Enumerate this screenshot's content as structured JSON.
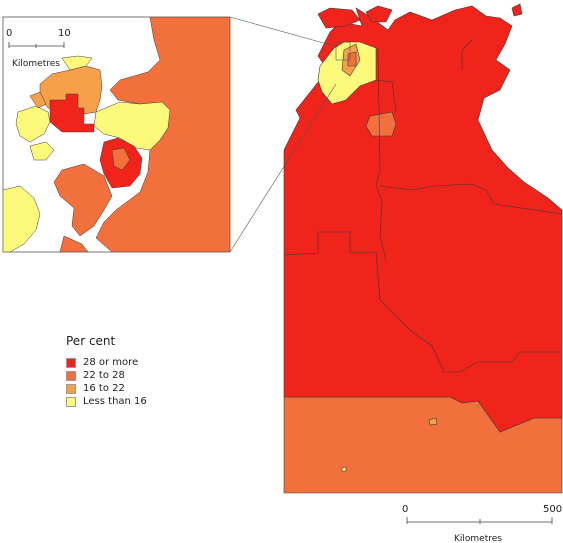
{
  "legend": {
    "title": "Per cent",
    "items": [
      {
        "label": "28 or more",
        "color": "#f0241b"
      },
      {
        "label": "22 to 28",
        "color": "#f2703c"
      },
      {
        "label": "16 to 22",
        "color": "#f6a04a"
      },
      {
        "label": "Less than 16",
        "color": "#fdf97a"
      }
    ]
  },
  "inset_scale": {
    "start": "0",
    "end": "10",
    "unit": "Kilometres"
  },
  "main_scale": {
    "start": "0",
    "end": "500",
    "unit": "Kilometres"
  },
  "colors": {
    "boundary": "#3a3a3a",
    "background": "#ffffff"
  }
}
